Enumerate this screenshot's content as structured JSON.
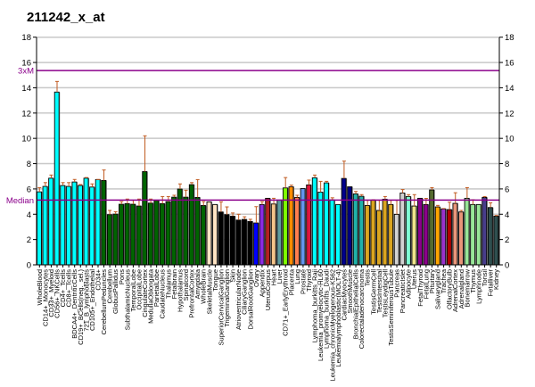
{
  "chart_data": {
    "type": "bar",
    "title": "211242_x_at",
    "xlabel": "",
    "ylabel": "",
    "ylim": [
      0,
      18
    ],
    "yticks": [
      0,
      2,
      4,
      6,
      8,
      10,
      12,
      14,
      16,
      18
    ],
    "grid": true,
    "reference_lines": [
      {
        "label": "3xM",
        "value": 15.36,
        "color": "#8B008B"
      },
      {
        "label": "Median",
        "value": 5.12,
        "color": "#8B008B"
      }
    ],
    "error_color": "#C05A20",
    "categories": [
      "WholeBlood",
      "CD14+_Monocytes",
      "CD33+_Myeloid",
      "CD56+_NKCells",
      "CD4+_Tcells",
      "CD8+_Tcells",
      "BDCA4+_DentriticCells",
      "CD19+_BCells(neg._sel.)",
      "721_B_lymphoblasts",
      "CD105+_Endothelial",
      "CD34+",
      "CerebellumPeduncles",
      "Cerebellum",
      "GlobusPallidus",
      "Pons",
      "SubthalamicNucleus",
      "TemporalLobe",
      "OccipitalLobe",
      "CingulateCortex",
      "MedullaOblongata",
      "ParietalLobe",
      "CaudateNucleus",
      "Thalamus",
      "Fetalbrain",
      "Hypothalamus",
      "Spinalcord",
      "PrefrontalCortex",
      "Amygdala",
      "WholeBrain",
      "SkeletalMuscle",
      "Tongue",
      "SuperiorCervicalGanglion",
      "TrigeminalGanglion",
      "Skin",
      "AtrioventricularNode",
      "CiliaryGanglion",
      "DorsalRootGanglion",
      "Ovary",
      "Appendix",
      "UterusCorpus",
      "Heart",
      "Liver",
      "CD71+_EarlyErythroid",
      "Placenta",
      "Lung",
      "Prostate",
      "Thyroid",
      "Lymphoma_burkitts_Raji",
      "Leukemia_promyelocytic-HL60",
      "Lymphoma_burkitts_Daudi",
      "Leukemia_chronicMyelogenous-K562",
      "Leukemialymphoblastic(MOLT-4)",
      "CardiacMyocytes",
      "SmoothMuscle",
      "BronchialEpithelialCells",
      "Colorectaladenocarcinoma",
      "Testis",
      "TestisGermCell",
      "TestisIntersitial",
      "TestisLeydigCell",
      "TestisSeminiferousTubule",
      "Pancreas",
      "PancreaticIslet",
      "Adipocyte",
      "Uterus",
      "FetalThyroid",
      "FetalLung",
      "Pituitary",
      "Salivarygland",
      "Trachea",
      "OlfactoryBulb",
      "AdrenalCortex",
      "Adrenalgland",
      "Bonemarrow",
      "Thymus",
      "Lymphnode",
      "Tonsil",
      "Fetalliver",
      "Kidney"
    ],
    "values": [
      5.77,
      6.2,
      6.85,
      13.66,
      6.27,
      6.2,
      6.55,
      6.27,
      6.85,
      6.15,
      6.74,
      6.67,
      3.97,
      4.01,
      4.79,
      4.84,
      4.79,
      4.65,
      7.37,
      4.88,
      5.09,
      4.84,
      5.0,
      5.35,
      5.99,
      5.35,
      6.34,
      5.33,
      4.69,
      4.98,
      4.77,
      4.18,
      3.97,
      3.85,
      3.54,
      3.59,
      3.43,
      3.31,
      4.77,
      5.26,
      4.81,
      5.12,
      6.08,
      6.17,
      5.33,
      6.03,
      6.32,
      6.88,
      5.75,
      6.48,
      5.14,
      4.77,
      6.83,
      6.17,
      5.61,
      5.42,
      4.69,
      5.12,
      4.3,
      5.19,
      4.77,
      3.99,
      5.68,
      5.4,
      4.65,
      5.26,
      4.77,
      5.92,
      4.58,
      4.42,
      4.37,
      4.86,
      4.18,
      5.26,
      4.77,
      4.77,
      5.33,
      4.53,
      3.85
    ],
    "error_tops": [
      6.1,
      6.5,
      7.1,
      14.5,
      6.5,
      6.5,
      6.75,
      6.35,
      6.9,
      6.4,
      6.75,
      7.5,
      4.3,
      4.2,
      5.0,
      5.2,
      5.1,
      5.2,
      10.2,
      5.2,
      5.1,
      5.4,
      5.4,
      5.5,
      6.4,
      5.9,
      6.5,
      6.74,
      5.0,
      null,
      null,
      4.98,
      4.58,
      4.1,
      4.0,
      3.8,
      3.6,
      4.6,
      5.0,
      null,
      5.26,
      null,
      6.9,
      6.3,
      5.5,
      null,
      6.7,
      7.1,
      6.6,
      6.6,
      5.3,
      null,
      8.2,
      null,
      5.8,
      5.55,
      5.1,
      5.15,
      5.1,
      5.4,
      5.1,
      5.1,
      5.95,
      5.55,
      5.55,
      5.25,
      5.25,
      6.1,
      4.7,
      4.45,
      4.95,
      5.7,
      4.3,
      6.1,
      5.15,
      null,
      5.4,
      4.9,
      3.9
    ],
    "colors": [
      "#00FFFF",
      "#00FFFF",
      "#00FFFF",
      "#00FFFF",
      "#00FFFF",
      "#00FFFF",
      "#00FFFF",
      "#00FFFF",
      "#00FFFF",
      "#00FFFF",
      "#00FFFF",
      "#006400",
      "#006400",
      "#006400",
      "#006400",
      "#006400",
      "#006400",
      "#006400",
      "#006400",
      "#006400",
      "#006400",
      "#006400",
      "#006400",
      "#006400",
      "#006400",
      "#006400",
      "#006400",
      "#006400",
      "#006400",
      "#FFE4C4",
      "#FFE4C4",
      "#000000",
      "#000000",
      "#000000",
      "#000000",
      "#000000",
      "#000000",
      "#0000FF",
      "#8A2BE2",
      "#B22222",
      "#F4C48A",
      "#5F9EA0",
      "#7FFF00",
      "#FF8C00",
      "#FF7F50",
      "#6495ED",
      "#DC143C",
      "#00FFFF",
      "#00FFFF",
      "#00FFFF",
      "#00FFFF",
      "#00FFFF",
      "#00008B",
      "#000080",
      "#20B2AA",
      "#20B2AA",
      "#DAA520",
      "#DAA520",
      "#DAA520",
      "#DAA520",
      "#DAA520",
      "#D3D3D3",
      "#D3D3D3",
      "#7FFFD4",
      "#F0E68C",
      "#8B008B",
      "#8B008B",
      "#556B2F",
      "#FFA500",
      "#9932CC",
      "#B00000",
      "#E9967A",
      "#E9967A",
      "#98E698",
      "#98E698",
      "#98E698",
      "#483D8B",
      "#2F4F4F",
      "#2F4F4F"
    ]
  }
}
